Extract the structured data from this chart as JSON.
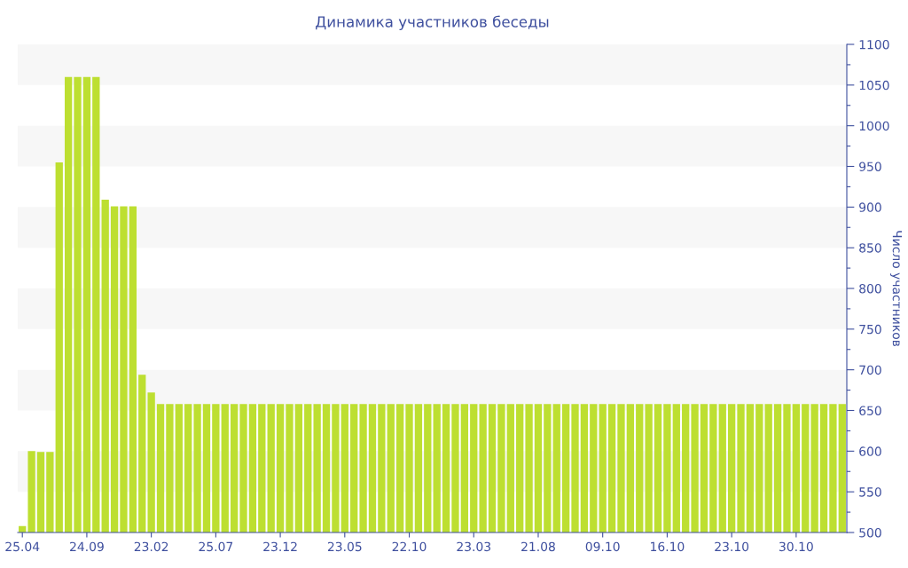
{
  "chart_data": {
    "type": "bar",
    "title": "Динамика участников беседы",
    "ylabel": "Число участников",
    "categories": [
      "25.04",
      null,
      null,
      null,
      null,
      null,
      null,
      "24.09",
      null,
      null,
      null,
      null,
      null,
      null,
      "23.02",
      null,
      null,
      null,
      null,
      null,
      null,
      "25.07",
      null,
      null,
      null,
      null,
      null,
      null,
      "23.12",
      null,
      null,
      null,
      null,
      null,
      null,
      "23.05",
      null,
      null,
      null,
      null,
      null,
      null,
      "22.10",
      null,
      null,
      null,
      null,
      null,
      null,
      "23.03",
      null,
      null,
      null,
      null,
      null,
      null,
      "21.08",
      null,
      null,
      null,
      null,
      null,
      null,
      "09.10",
      null,
      null,
      null,
      null,
      null,
      null,
      "16.10",
      null,
      null,
      null,
      null,
      null,
      null,
      "23.10",
      null,
      null,
      null,
      null,
      null,
      null,
      "30.10",
      null,
      null,
      null,
      null,
      null
    ],
    "values": [
      508,
      600,
      599,
      599,
      955,
      1060,
      1060,
      1060,
      1060,
      909,
      901,
      901,
      901,
      694,
      672,
      658,
      658,
      658,
      658,
      658,
      658,
      658,
      658,
      658,
      658,
      658,
      658,
      658,
      658,
      658,
      658,
      658,
      658,
      658,
      658,
      658,
      658,
      658,
      658,
      658,
      658,
      658,
      658,
      658,
      658,
      658,
      658,
      658,
      658,
      658,
      658,
      658,
      658,
      658,
      658,
      658,
      658,
      658,
      658,
      658,
      658,
      658,
      658,
      658,
      658,
      658,
      658,
      658,
      658,
      658,
      658,
      658,
      658,
      658,
      658,
      658,
      658,
      658,
      658,
      658,
      658,
      658,
      658,
      658,
      658,
      658,
      658,
      658,
      658,
      658
    ],
    "color": "#bddf31",
    "ylim": [
      500,
      1100
    ],
    "yticks": [
      500,
      {
        "value": 525,
        "label": null
      },
      550,
      {
        "value": 575,
        "label": null
      },
      600,
      {
        "value": 625,
        "label": null
      },
      650,
      {
        "value": 675,
        "label": null
      },
      700,
      {
        "value": 725,
        "label": null
      },
      750,
      {
        "value": 775,
        "label": null
      },
      800,
      {
        "value": 825,
        "label": null
      },
      850,
      {
        "value": 875,
        "label": null
      },
      900,
      {
        "value": 925,
        "label": null
      },
      950,
      {
        "value": 975,
        "label": null
      },
      1000,
      {
        "value": 1025,
        "label": null
      },
      1050,
      {
        "value": 1075,
        "label": null
      },
      1100
    ],
    "bands": [
      {
        "axis": "y",
        "from": 550,
        "to": 600,
        "color": "#f7f7f7"
      },
      {
        "axis": "y",
        "from": 650,
        "to": 700,
        "color": "#f7f7f7"
      },
      {
        "axis": "y",
        "from": 750,
        "to": 800,
        "color": "#f7f7f7"
      },
      {
        "axis": "y",
        "from": 850,
        "to": 900,
        "color": "#f7f7f7"
      },
      {
        "axis": "y",
        "from": 950,
        "to": 1000,
        "color": "#f7f7f7"
      },
      {
        "axis": "y",
        "from": 1050,
        "to": 1100,
        "color": "#f7f7f7"
      }
    ],
    "grid": false,
    "legend": false
  }
}
